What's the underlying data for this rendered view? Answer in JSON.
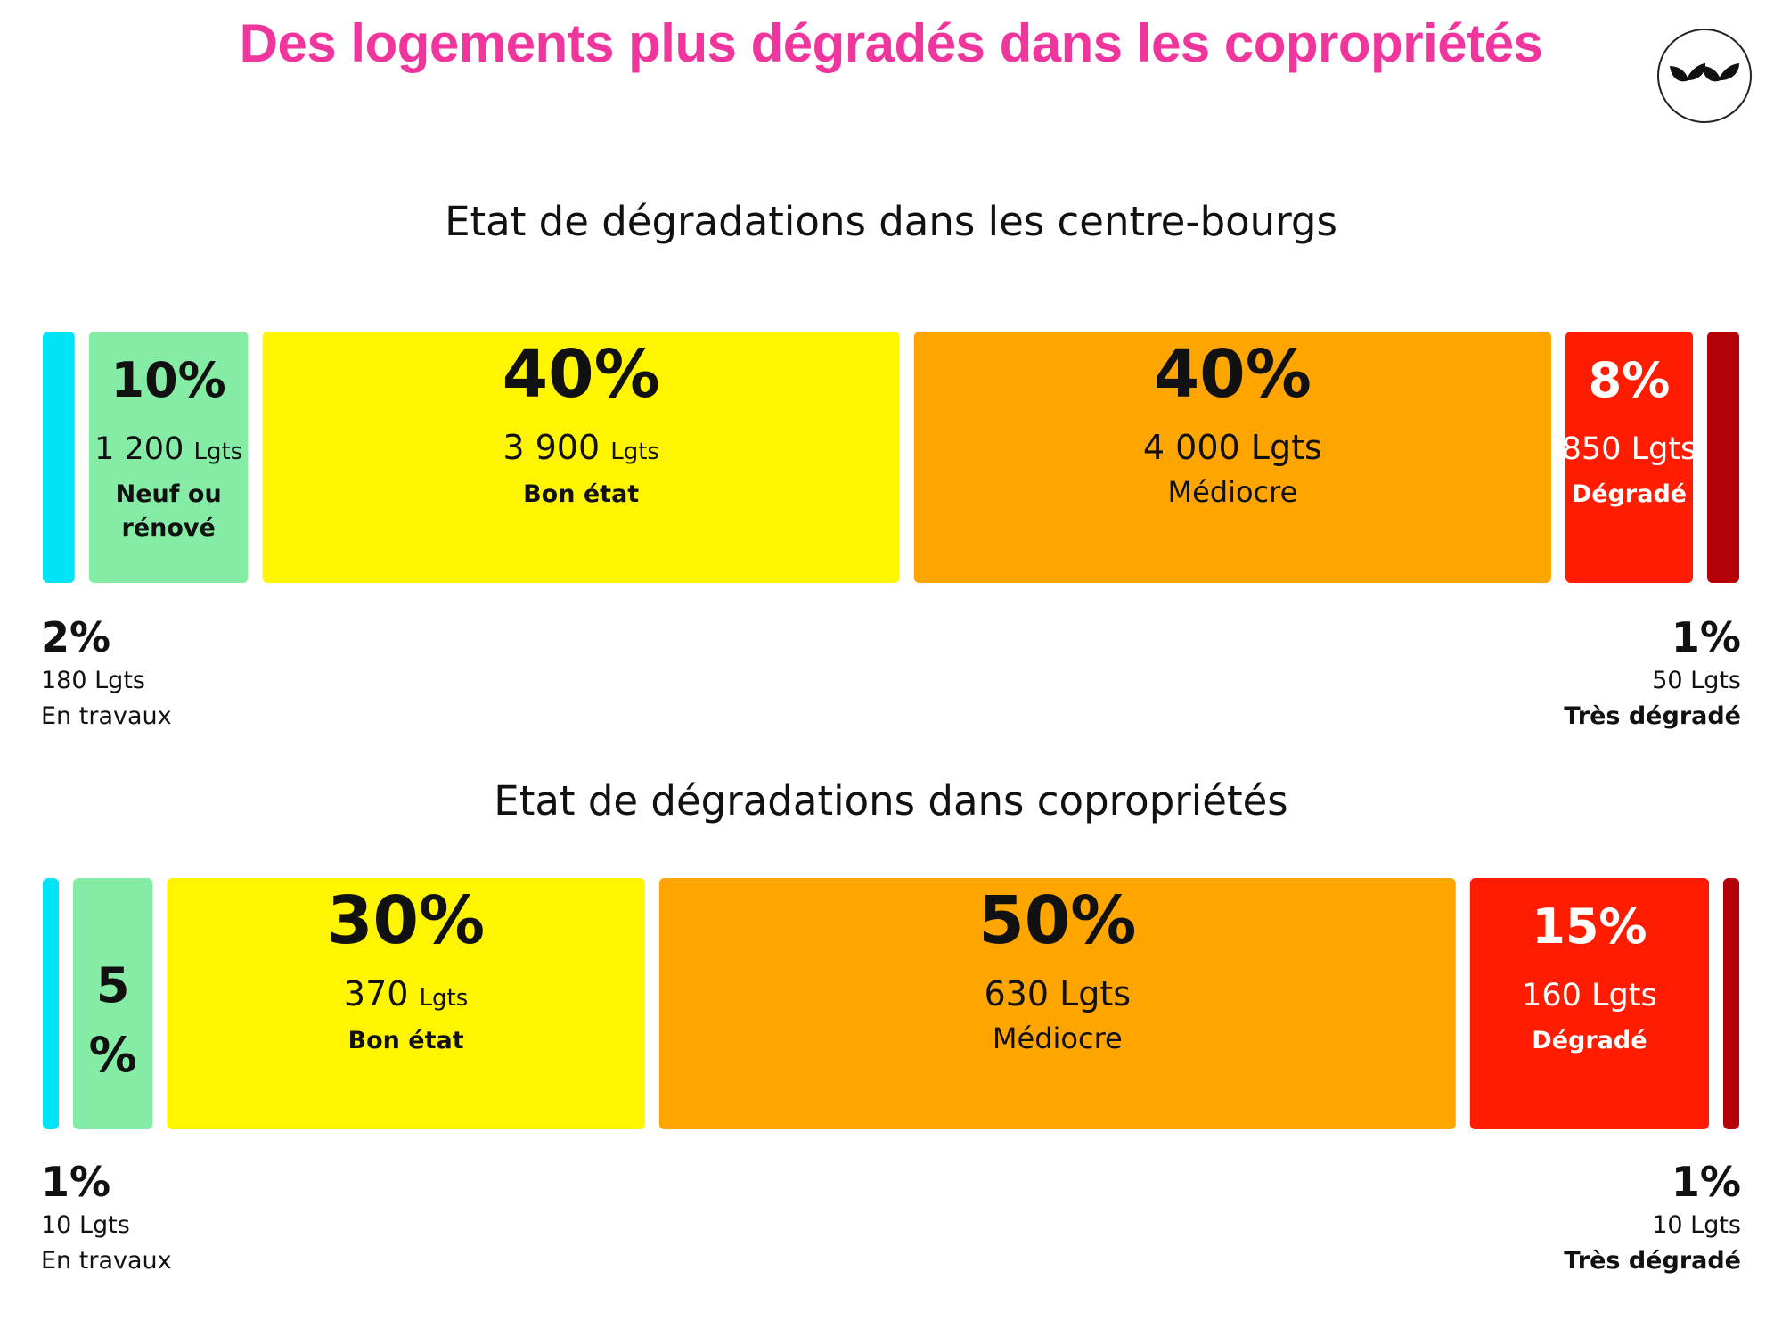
{
  "page": {
    "title": "Des logements plus dégradés dans les copropriétés",
    "title_color": "#f0359d"
  },
  "logo": {
    "icon": "leaf-logo-icon",
    "color": "#111111"
  },
  "colors": {
    "en_travaux": "#00e4f6",
    "neuf": "#84eca4",
    "bon": "#fff500",
    "mediocre": "#ffa500",
    "degrade": "#ff1c00",
    "tres_degrade": "#b50006"
  },
  "chart_data": [
    {
      "type": "bar",
      "subtype": "stacked-horizontal",
      "title": "Etat de dégradations dans les centre-bourgs",
      "categories": [
        "En travaux",
        "Neuf ou rénové",
        "Bon état",
        "Médiocre",
        "Dégradé",
        "Très dégradé"
      ],
      "values": [
        2,
        10,
        40,
        40,
        8,
        1
      ],
      "unit": "%",
      "segments": [
        {
          "pct": "2%",
          "count": "180",
          "unit": "Lgts",
          "status": "En travaux",
          "value": 2,
          "color_key": "en_travaux"
        },
        {
          "pct": "10%",
          "count": "1 200",
          "unit": "Lgts",
          "status": "Neuf ou rénové",
          "value": 10,
          "color_key": "neuf"
        },
        {
          "pct": "40%",
          "count": "3 900",
          "unit": "Lgts",
          "status": "Bon état",
          "value": 40,
          "color_key": "bon"
        },
        {
          "pct": "40%",
          "count": "4 000",
          "unit": "Lgts",
          "status": "Médiocre",
          "value": 40,
          "color_key": "mediocre"
        },
        {
          "pct": "8%",
          "count": "850",
          "unit": "Lgts",
          "status": "Dégradé",
          "value": 8,
          "color_key": "degrade"
        },
        {
          "pct": "1%",
          "count": "50",
          "unit": "Lgts",
          "status": "Très dégradé",
          "value": 1,
          "color_key": "tres_degrade"
        }
      ]
    },
    {
      "type": "bar",
      "subtype": "stacked-horizontal",
      "title": "Etat de dégradations dans copropriétés",
      "categories": [
        "En travaux",
        "Neuf ou rénové",
        "Bon état",
        "Médiocre",
        "Dégradé",
        "Très dégradé"
      ],
      "values": [
        1,
        5,
        30,
        50,
        15,
        1
      ],
      "unit": "%",
      "segments": [
        {
          "pct": "1%",
          "count": "10",
          "unit": "Lgts",
          "status": "En travaux",
          "value": 1,
          "color_key": "en_travaux"
        },
        {
          "pct": "5 %",
          "count": "",
          "unit": "",
          "status": "",
          "value": 5,
          "color_key": "neuf"
        },
        {
          "pct": "30%",
          "count": "370",
          "unit": "Lgts",
          "status": "Bon état",
          "value": 30,
          "color_key": "bon"
        },
        {
          "pct": "50%",
          "count": "630",
          "unit": "Lgts",
          "status": "Médiocre",
          "value": 50,
          "color_key": "mediocre"
        },
        {
          "pct": "15%",
          "count": "160",
          "unit": "Lgts",
          "status": "Dégradé",
          "value": 15,
          "color_key": "degrade"
        },
        {
          "pct": "1%",
          "count": "10",
          "unit": "Lgts",
          "status": "Très dégradé",
          "value": 1,
          "color_key": "tres_degrade"
        }
      ]
    }
  ]
}
